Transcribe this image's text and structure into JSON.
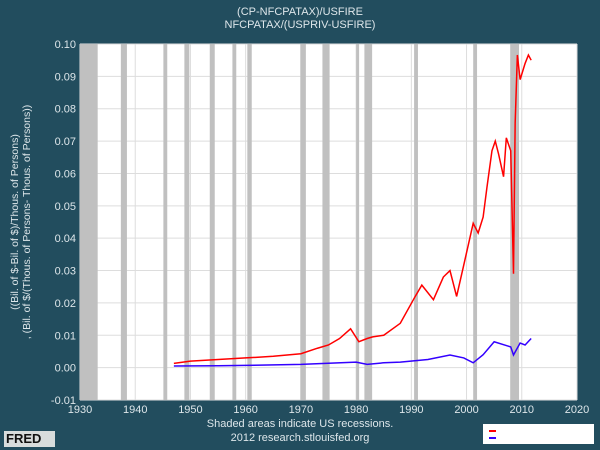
{
  "title": [
    "(CP-NFCPATAX)/USFIRE",
    "NFCPATAX/(USPRIV-USFIRE)"
  ],
  "footer": [
    "Shaded areas indicate US recessions.",
    "2012 research.stlouisfed.org"
  ],
  "logo": "FRED",
  "chart_data": {
    "type": "line",
    "title": "(CP-NFCPATAX)/USFIRE / NFCPATAX/(USPRIV-USFIRE)",
    "ylabel": "((Bil. of $-Bil. of $)/Thous. of Persons) , (Bil. of $/(Thous. of Persons- Thous. of Persons))",
    "xlim": [
      1930,
      2020
    ],
    "ylim": [
      -0.01,
      0.1
    ],
    "xticks": [
      1930,
      1940,
      1950,
      1960,
      1970,
      1980,
      1990,
      2000,
      2010,
      2020
    ],
    "yticks": [
      "-0.01",
      "0.00",
      "0.01",
      "0.02",
      "0.03",
      "0.04",
      "0.05",
      "0.06",
      "0.07",
      "0.08",
      "0.09",
      "0.10"
    ],
    "grid": true,
    "recessions": [
      [
        1929.6,
        1933.2
      ],
      [
        1937.4,
        1938.5
      ],
      [
        1945.1,
        1945.8
      ],
      [
        1948.9,
        1949.8
      ],
      [
        1953.5,
        1954.4
      ],
      [
        1957.6,
        1958.3
      ],
      [
        1960.3,
        1961.1
      ],
      [
        1969.9,
        1970.9
      ],
      [
        1973.9,
        1975.2
      ],
      [
        1980,
        1980.5
      ],
      [
        1981.5,
        1982.9
      ],
      [
        1990.5,
        1991.2
      ],
      [
        2001.2,
        2001.9
      ],
      [
        2007.9,
        2009.5
      ]
    ],
    "series": [
      {
        "color": "#ff0000",
        "points": [
          [
            1947,
            0.0013
          ],
          [
            1950,
            0.002
          ],
          [
            1955,
            0.0025
          ],
          [
            1960,
            0.003
          ],
          [
            1965,
            0.0035
          ],
          [
            1970,
            0.0043
          ],
          [
            1973,
            0.006
          ],
          [
            1975,
            0.007
          ],
          [
            1977,
            0.009
          ],
          [
            1979,
            0.012
          ],
          [
            1980.5,
            0.008
          ],
          [
            1982,
            0.009
          ],
          [
            1983,
            0.0095
          ],
          [
            1985,
            0.01
          ],
          [
            1988,
            0.0137
          ],
          [
            1990.7,
            0.022
          ],
          [
            1991.9,
            0.0255
          ],
          [
            1994,
            0.021
          ],
          [
            1995.8,
            0.028
          ],
          [
            1997,
            0.03
          ],
          [
            1998.2,
            0.022
          ],
          [
            1999.4,
            0.031
          ],
          [
            2001.2,
            0.0446
          ],
          [
            2002.1,
            0.0416
          ],
          [
            2003,
            0.0465
          ],
          [
            2003.7,
            0.0558
          ],
          [
            2004.6,
            0.067
          ],
          [
            2005.2,
            0.07
          ],
          [
            2005.8,
            0.066
          ],
          [
            2006.7,
            0.059
          ],
          [
            2007.2,
            0.071
          ],
          [
            2008,
            0.067
          ],
          [
            2008.5,
            0.029
          ],
          [
            2008.8,
            0.0755
          ],
          [
            2009.2,
            0.0966
          ],
          [
            2009.7,
            0.089
          ],
          [
            2010.6,
            0.094
          ],
          [
            2011.2,
            0.0966
          ],
          [
            2011.7,
            0.095
          ]
        ]
      },
      {
        "color": "#3300ff",
        "points": [
          [
            1947,
            0.0005
          ],
          [
            1955,
            0.0006
          ],
          [
            1960,
            0.0007
          ],
          [
            1970,
            0.001
          ],
          [
            1980,
            0.0017
          ],
          [
            1982,
            0.001
          ],
          [
            1985,
            0.0015
          ],
          [
            1988,
            0.0017
          ],
          [
            1993,
            0.0025
          ],
          [
            1997,
            0.0039
          ],
          [
            1999.5,
            0.003
          ],
          [
            2001.2,
            0.0015
          ],
          [
            2003,
            0.004
          ],
          [
            2005,
            0.008
          ],
          [
            2008,
            0.0064
          ],
          [
            2008.5,
            0.0039
          ],
          [
            2009.7,
            0.0076
          ],
          [
            2010.6,
            0.007
          ],
          [
            2011.7,
            0.009
          ]
        ]
      }
    ]
  }
}
